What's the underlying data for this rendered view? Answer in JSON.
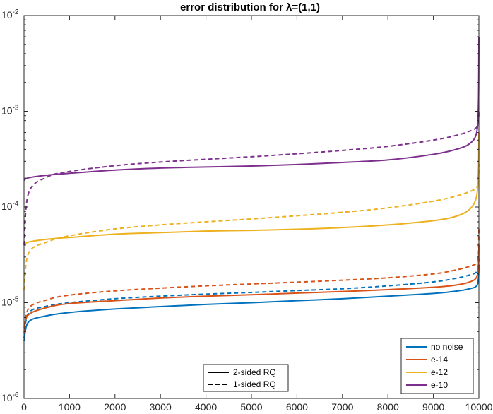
{
  "chart_data": {
    "type": "line",
    "title": "error distribution for λ=(1,1)",
    "xlabel": "",
    "ylabel": "",
    "xlim": [
      0,
      10000
    ],
    "ylim": [
      1e-06,
      0.01
    ],
    "yscale": "log",
    "grid": false,
    "x_ticks": [
      0,
      1000,
      2000,
      3000,
      4000,
      5000,
      6000,
      7000,
      8000,
      9000,
      10000
    ],
    "x_tick_labels": [
      "0",
      "1000",
      "2000",
      "3000",
      "4000",
      "5000",
      "6000",
      "7000",
      "8000",
      "9000",
      "10000"
    ],
    "y_ticks": [
      1e-06,
      1e-05,
      0.0001,
      0.001,
      0.01
    ],
    "y_tick_labels": [
      {
        "base": "10",
        "exp": "-6"
      },
      {
        "base": "10",
        "exp": "-5"
      },
      {
        "base": "10",
        "exp": "-4"
      },
      {
        "base": "10",
        "exp": "-3"
      },
      {
        "base": "10",
        "exp": "-2"
      }
    ],
    "x": [
      1,
      100,
      500,
      1000,
      2000,
      3000,
      4000,
      5000,
      6000,
      7000,
      8000,
      9000,
      9500,
      9800,
      9950,
      9990,
      10000
    ],
    "series": [
      {
        "name": "no noise",
        "style": "2-sided RQ",
        "color": "#0072BD",
        "values": [
          4e-06,
          6.3e-06,
          7.3e-06,
          7.9e-06,
          8.6e-06,
          9.1e-06,
          9.6e-06,
          1e-05,
          1.05e-05,
          1.1e-05,
          1.17e-05,
          1.25e-05,
          1.32e-05,
          1.4e-05,
          1.5e-05,
          1.8e-05,
          2.5e-05
        ]
      },
      {
        "name": "no noise",
        "style": "1-sided RQ",
        "color": "#0072BD",
        "values": [
          4.3e-06,
          7.8e-06,
          9.2e-06,
          1e-05,
          1.1e-05,
          1.17e-05,
          1.23e-05,
          1.28e-05,
          1.34e-05,
          1.4e-05,
          1.5e-05,
          1.65e-05,
          1.8e-05,
          1.95e-05,
          2.1e-05,
          2.5e-05,
          3e-05
        ]
      },
      {
        "name": "e-14",
        "style": "2-sided RQ",
        "color": "#D95319",
        "values": [
          5.5e-06,
          7.5e-06,
          8.9e-06,
          9.8e-06,
          1.05e-05,
          1.12e-05,
          1.17e-05,
          1.21e-05,
          1.26e-05,
          1.31e-05,
          1.37e-05,
          1.45e-05,
          1.53e-05,
          1.65e-05,
          1.85e-05,
          2.5e-05,
          4e-05
        ]
      },
      {
        "name": "e-14",
        "style": "1-sided RQ",
        "color": "#D95319",
        "values": [
          4.8e-06,
          8.7e-06,
          1.07e-05,
          1.2e-05,
          1.33e-05,
          1.42e-05,
          1.5e-05,
          1.57e-05,
          1.64e-05,
          1.72e-05,
          1.82e-05,
          2e-05,
          2.2e-05,
          2.4e-05,
          2.6e-05,
          3.2e-05,
          6e-05
        ]
      },
      {
        "name": "e-12",
        "style": "2-sided RQ",
        "color": "#EDB120",
        "values": [
          4e-05,
          4.3e-05,
          4.6e-05,
          4.8e-05,
          5.2e-05,
          5.4e-05,
          5.6e-05,
          5.7e-05,
          5.85e-05,
          6.1e-05,
          6.5e-05,
          7.2e-05,
          8e-05,
          9.5e-05,
          0.00013,
          0.00025,
          0.0006
        ]
      },
      {
        "name": "e-12",
        "style": "1-sided RQ",
        "color": "#EDB120",
        "values": [
          1.35e-05,
          3.3e-05,
          4.3e-05,
          5e-05,
          5.9e-05,
          6.5e-05,
          7e-05,
          7.5e-05,
          8.1e-05,
          8.8e-05,
          9.8e-05,
          0.000115,
          0.00013,
          0.000145,
          0.00016,
          0.0002,
          0.00028
        ]
      },
      {
        "name": "e-10",
        "style": "2-sided RQ",
        "color": "#7E2F8E",
        "values": [
          0.00019,
          0.000202,
          0.000215,
          0.000225,
          0.000243,
          0.000255,
          0.000262,
          0.000268,
          0.000278,
          0.000292,
          0.00031,
          0.000355,
          0.0004,
          0.00046,
          0.0006,
          0.0012,
          0.006
        ]
      },
      {
        "name": "e-10",
        "style": "1-sided RQ",
        "color": "#7E2F8E",
        "values": [
          4e-05,
          0.00014,
          0.000205,
          0.000235,
          0.00027,
          0.000295,
          0.000315,
          0.000335,
          0.00036,
          0.00039,
          0.00043,
          0.0005,
          0.00056,
          0.00062,
          0.00068,
          0.0008,
          0.001
        ]
      }
    ],
    "legend_colors": {
      "position": "bottom-right",
      "entries": [
        {
          "label": "no noise",
          "color": "#0072BD"
        },
        {
          "label": "e-14",
          "color": "#D95319"
        },
        {
          "label": "e-12",
          "color": "#EDB120"
        },
        {
          "label": "e-10",
          "color": "#7E2F8E"
        }
      ]
    },
    "legend_styles": {
      "position": "bottom-center",
      "entries": [
        {
          "label": "2-sided RQ",
          "dash": "solid"
        },
        {
          "label": "1-sided RQ",
          "dash": "dashed"
        }
      ]
    }
  }
}
